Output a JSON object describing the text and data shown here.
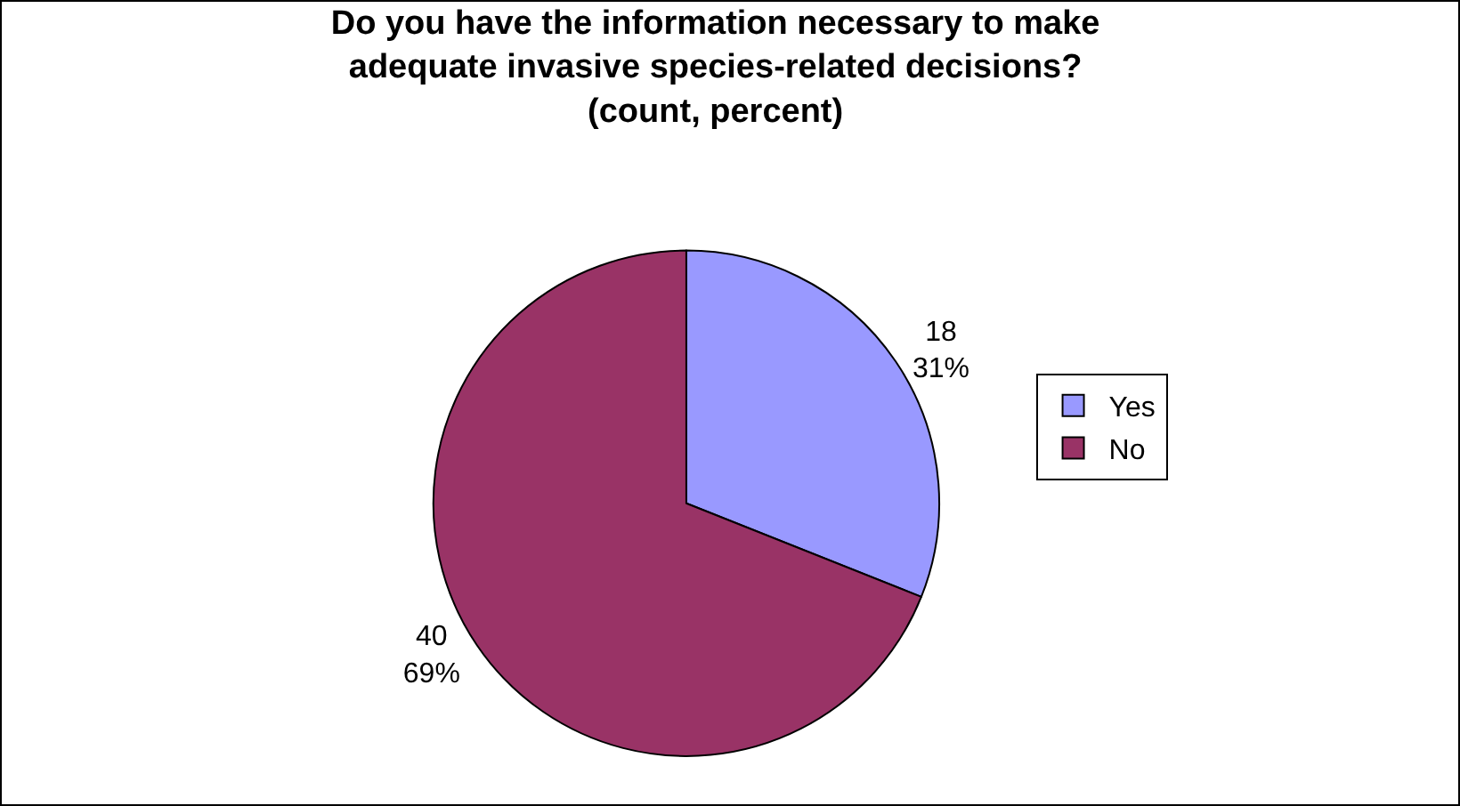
{
  "chart_data": {
    "type": "pie",
    "title": "Do you have the information necessary to make\nadequate invasive species-related decisions?\n(count, percent)",
    "categories": [
      "Yes",
      "No"
    ],
    "values": [
      18,
      40
    ],
    "colors": [
      "#9999ff",
      "#993366"
    ],
    "value_labels": [
      "18\n31%",
      "40\n69%"
    ],
    "legend": "right"
  }
}
